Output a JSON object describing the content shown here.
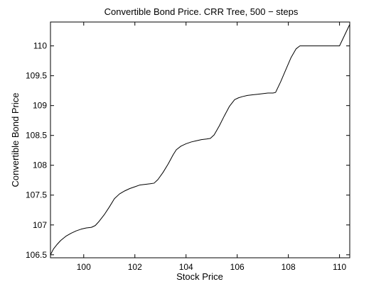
{
  "chart_data": {
    "type": "line",
    "title": "Convertible Bond Price. CRR Tree, 500 − steps",
    "xlabel": "Stock Price",
    "ylabel": "Convertible Bond Price",
    "xlim": [
      98.7,
      110.4
    ],
    "ylim": [
      106.45,
      110.4
    ],
    "grid": false,
    "xticks": [
      100,
      102,
      104,
      106,
      108,
      110
    ],
    "xtick_labels": [
      "100",
      "102",
      "104",
      "106",
      "108",
      "110"
    ],
    "yticks": [
      106.5,
      107,
      107.5,
      108,
      108.5,
      109,
      109.5,
      110
    ],
    "ytick_labels": [
      "106.5",
      "107",
      "107.5",
      "108",
      "108.5",
      "109",
      "109.5",
      "110"
    ],
    "series": [
      {
        "color": "#000000",
        "x": [
          98.7,
          98.82,
          98.95,
          99.1,
          99.3,
          99.5,
          99.7,
          99.9,
          100.1,
          100.3,
          100.45,
          100.6,
          100.8,
          101.0,
          101.2,
          101.4,
          101.6,
          101.8,
          102.0,
          102.2,
          102.4,
          102.6,
          102.75,
          102.9,
          103.1,
          103.3,
          103.5,
          103.62,
          103.8,
          104.0,
          104.2,
          104.4,
          104.6,
          104.8,
          104.95,
          105.1,
          105.3,
          105.5,
          105.7,
          105.9,
          106.05,
          106.2,
          106.4,
          106.6,
          106.8,
          107.0,
          107.2,
          107.4,
          107.5,
          107.7,
          107.9,
          108.1,
          108.3,
          108.45,
          108.7,
          109.0,
          109.3,
          109.6,
          109.85,
          110.0,
          110.2,
          110.4
        ],
        "y": [
          106.5,
          106.6,
          106.67,
          106.74,
          106.81,
          106.86,
          106.9,
          106.93,
          106.95,
          106.96,
          106.99,
          107.06,
          107.17,
          107.3,
          107.44,
          107.52,
          107.57,
          107.61,
          107.64,
          107.67,
          107.68,
          107.69,
          107.7,
          107.76,
          107.88,
          108.02,
          108.18,
          108.26,
          108.32,
          108.36,
          108.39,
          108.41,
          108.43,
          108.44,
          108.45,
          108.51,
          108.66,
          108.83,
          108.99,
          109.1,
          109.13,
          109.15,
          109.17,
          109.18,
          109.19,
          109.2,
          109.21,
          109.21,
          109.22,
          109.4,
          109.6,
          109.8,
          109.95,
          110.0,
          110.0,
          110.0,
          110.0,
          110.0,
          110.0,
          110.0,
          110.18,
          110.36
        ]
      }
    ]
  }
}
